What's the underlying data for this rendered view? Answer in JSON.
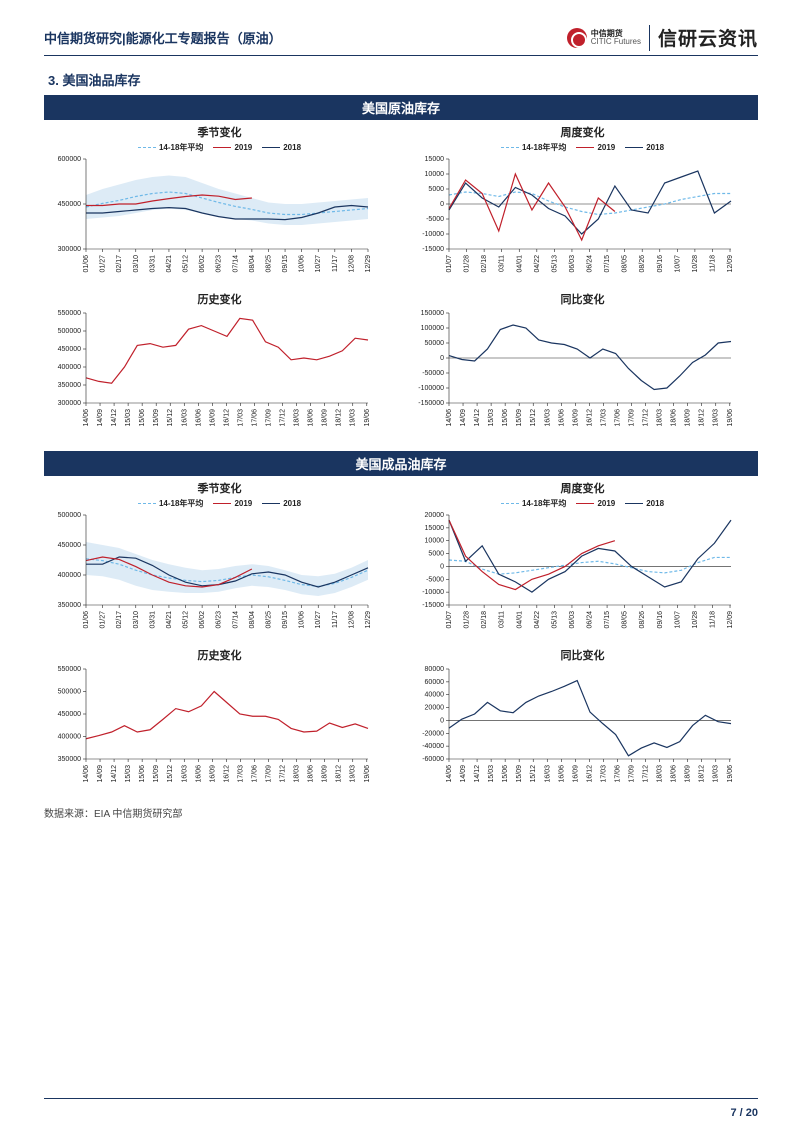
{
  "header": {
    "left": "中信期货研究|能源化工专题报告（原油）",
    "logo_cn": "中信期货",
    "logo_en": "CITIC Futures",
    "brand": "信研云资讯"
  },
  "section": {
    "num": "3.",
    "title": "美国油品库存"
  },
  "banner1": "美国原油库存",
  "banner2": "美国成品油库存",
  "legend": {
    "avg": "14-18年平均",
    "y2019": "2019",
    "y2018": "2018"
  },
  "titles": {
    "season": "季节变化",
    "weekly": "周度变化",
    "history": "历史变化",
    "yoy": "同比变化"
  },
  "colors": {
    "navy": "#1a3560",
    "red": "#c0202b",
    "dash": "#6fb9e8",
    "band": "#cfe3f2",
    "grid": "#e0e0e0",
    "black": "#222"
  },
  "xlabels_month": [
    "01/06",
    "01/27",
    "02/17",
    "03/10",
    "03/31",
    "04/21",
    "05/12",
    "06/02",
    "06/23",
    "07/14",
    "08/04",
    "08/25",
    "09/15",
    "10/06",
    "10/27",
    "11/17",
    "12/08",
    "12/29"
  ],
  "xlabels_week": [
    "01/07",
    "01/28",
    "02/18",
    "03/11",
    "04/01",
    "04/22",
    "05/13",
    "06/03",
    "06/24",
    "07/15",
    "08/05",
    "08/26",
    "09/16",
    "10/07",
    "10/28",
    "11/18",
    "12/09"
  ],
  "xlabels_hist": [
    "14/06",
    "14/09",
    "14/12",
    "15/03",
    "15/06",
    "15/09",
    "15/12",
    "16/03",
    "16/06",
    "16/09",
    "16/12",
    "17/03",
    "17/06",
    "17/09",
    "17/12",
    "18/03",
    "18/06",
    "18/09",
    "18/12",
    "19/03",
    "19/06"
  ],
  "crude": {
    "season": {
      "ymin": 300000,
      "ymax": 600000,
      "yticks": [
        300000,
        450000,
        600000
      ],
      "band_hi": [
        480000,
        500000,
        515000,
        530000,
        540000,
        545000,
        540000,
        520000,
        500000,
        485000,
        470000,
        455000,
        450000,
        450000,
        455000,
        460000,
        465000,
        470000
      ],
      "band_lo": [
        400000,
        405000,
        410000,
        420000,
        430000,
        435000,
        430000,
        420000,
        410000,
        400000,
        395000,
        385000,
        380000,
        380000,
        385000,
        390000,
        395000,
        400000
      ],
      "avg": [
        440000,
        452000,
        462000,
        475000,
        485000,
        490000,
        485000,
        470000,
        455000,
        442000,
        432000,
        420000,
        415000,
        415000,
        420000,
        425000,
        430000,
        435000
      ],
      "y2018": [
        420000,
        420000,
        425000,
        430000,
        435000,
        438000,
        435000,
        420000,
        408000,
        400000,
        400000,
        400000,
        398000,
        405000,
        420000,
        440000,
        445000,
        440000
      ],
      "y2019": [
        445000,
        445000,
        450000,
        450000,
        460000,
        468000,
        475000,
        480000,
        476000,
        465000,
        470000
      ]
    },
    "weekly": {
      "ymin": -15000,
      "ymax": 15000,
      "yticks": [
        -15000,
        -10000,
        -5000,
        0,
        5000,
        10000,
        15000
      ],
      "avg": [
        3000,
        4000,
        3500,
        2500,
        4000,
        3500,
        1000,
        -1000,
        -2500,
        -3500,
        -3000,
        -2000,
        -1000,
        0,
        1500,
        2500,
        3500,
        3500
      ],
      "y2018": [
        -2000,
        7000,
        2000,
        -1000,
        5500,
        3000,
        -1500,
        -4000,
        -10000,
        -5000,
        6000,
        -2000,
        -3000,
        7000,
        9000,
        11000,
        -3000,
        1000
      ],
      "y2019": [
        -1500,
        8000,
        3500,
        -9000,
        10000,
        -2000,
        7000,
        -1000,
        -12000,
        2000,
        -2500
      ]
    },
    "history": {
      "ymin": 300000,
      "ymax": 550000,
      "yticks": [
        300000,
        350000,
        400000,
        450000,
        500000,
        550000
      ],
      "data": [
        370000,
        360000,
        355000,
        400000,
        460000,
        465000,
        455000,
        460000,
        505000,
        515000,
        500000,
        485000,
        535000,
        530000,
        470000,
        455000,
        420000,
        425000,
        420000,
        430000,
        445000,
        480000,
        475000
      ]
    },
    "yoy": {
      "ymin": -150000,
      "ymax": 150000,
      "yticks": [
        -150000,
        -100000,
        -50000,
        0,
        50000,
        100000,
        150000
      ],
      "data": [
        8000,
        -5000,
        -10000,
        30000,
        95000,
        110000,
        100000,
        60000,
        50000,
        45000,
        30000,
        0,
        30000,
        15000,
        -35000,
        -75000,
        -105000,
        -100000,
        -60000,
        -15000,
        10000,
        50000,
        55000
      ]
    }
  },
  "product": {
    "season": {
      "ymin": 350000,
      "ymax": 500000,
      "yticks": [
        350000,
        400000,
        450000,
        500000
      ],
      "band_hi": [
        455000,
        450000,
        445000,
        435000,
        425000,
        418000,
        412000,
        408000,
        410000,
        415000,
        418000,
        415000,
        408000,
        400000,
        398000,
        402000,
        412000,
        425000
      ],
      "band_lo": [
        400000,
        398000,
        392000,
        382000,
        375000,
        372000,
        370000,
        370000,
        372000,
        378000,
        382000,
        380000,
        375000,
        368000,
        365000,
        370000,
        380000,
        392000
      ],
      "avg": [
        427000,
        424000,
        418000,
        408000,
        400000,
        395000,
        391000,
        389000,
        391000,
        396000,
        400000,
        397000,
        391000,
        384000,
        381000,
        386000,
        396000,
        408000
      ],
      "y2018": [
        418000,
        418000,
        430000,
        428000,
        416000,
        400000,
        388000,
        382000,
        384000,
        390000,
        402000,
        405000,
        400000,
        388000,
        380000,
        388000,
        400000,
        412000
      ],
      "y2019": [
        424000,
        430000,
        426000,
        414000,
        400000,
        388000,
        382000,
        380000,
        384000,
        396000,
        410000
      ]
    },
    "weekly": {
      "ymin": -15000,
      "ymax": 20000,
      "yticks": [
        -15000,
        -10000,
        -5000,
        0,
        5000,
        10000,
        15000,
        20000
      ],
      "avg": [
        2500,
        2000,
        -1000,
        -3000,
        -2500,
        -1500,
        -500,
        500,
        1500,
        2000,
        1000,
        -500,
        -2000,
        -2500,
        -1500,
        1500,
        3500,
        3500
      ],
      "y2018": [
        18000,
        2000,
        8000,
        -3000,
        -6000,
        -10000,
        -5000,
        -2000,
        4000,
        7000,
        6000,
        0,
        -4000,
        -8000,
        -6000,
        3000,
        9000,
        18000
      ],
      "y2019": [
        18000,
        4000,
        -2000,
        -7000,
        -9000,
        -5000,
        -3000,
        0,
        5000,
        8000,
        10000
      ]
    },
    "history": {
      "ymin": 350000,
      "ymax": 550000,
      "yticks": [
        350000,
        400000,
        450000,
        500000,
        550000
      ],
      "data": [
        395000,
        402000,
        410000,
        424000,
        410000,
        415000,
        438000,
        462000,
        455000,
        468000,
        500000,
        475000,
        450000,
        445000,
        445000,
        438000,
        418000,
        410000,
        412000,
        430000,
        420000,
        428000,
        418000
      ]
    },
    "yoy": {
      "ymin": -60000,
      "ymax": 80000,
      "yticks": [
        -60000,
        -40000,
        -20000,
        0,
        20000,
        40000,
        60000,
        80000
      ],
      "data": [
        -12000,
        2000,
        10000,
        28000,
        15000,
        12000,
        28000,
        38000,
        45000,
        53000,
        62000,
        13000,
        -5000,
        -22000,
        -55000,
        -43000,
        -35000,
        -42000,
        -33000,
        -8000,
        8000,
        -2000,
        -5000
      ]
    }
  },
  "source": "数据来源：EIA 中信期货研究部",
  "footer": {
    "page": "7",
    "total": "20"
  }
}
